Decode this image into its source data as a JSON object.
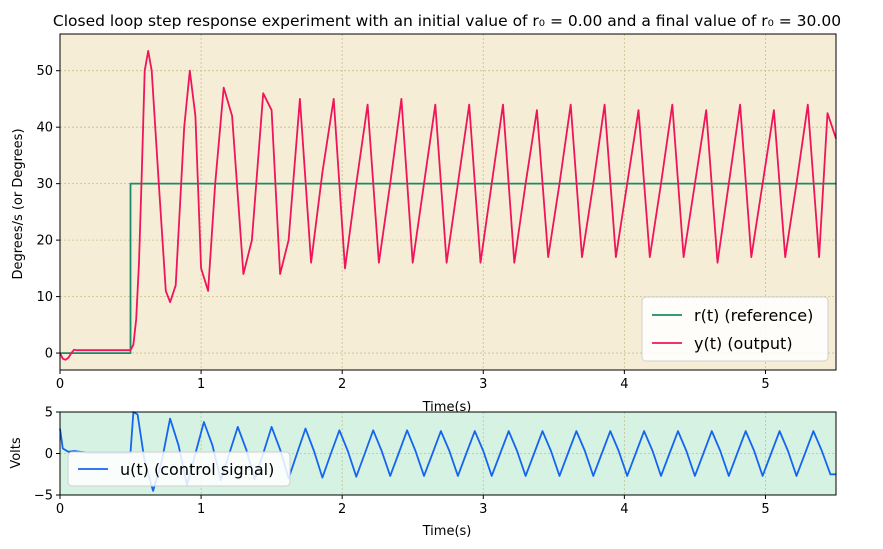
{
  "chart_data": [
    {
      "type": "line",
      "title": "Closed loop step response experiment with an initial value of  r₀ = 0.00 and a  final value of r₀ = 30.00",
      "xlabel": "Time(s)",
      "ylabel": "Degrees/s (or Degrees)",
      "xlim": [
        0,
        5.5
      ],
      "ylim": [
        -3,
        56.5
      ],
      "xticks": [
        0,
        1,
        2,
        3,
        4,
        5
      ],
      "yticks": [
        0,
        10,
        20,
        30,
        40,
        50
      ],
      "grid": true,
      "background": "#f5edd6",
      "legend_position": "lower-right",
      "series": [
        {
          "name": "r(t) (reference)",
          "color": "#1a8a6a",
          "x": [
            0,
            0.5,
            0.5,
            5.5
          ],
          "y": [
            0,
            0,
            30,
            30
          ]
        },
        {
          "name": "y(t) (output)",
          "color": "#f0145a",
          "x": [
            0,
            0.02,
            0.04,
            0.06,
            0.08,
            0.1,
            0.12,
            0.14,
            0.5,
            0.52,
            0.54,
            0.56,
            0.58,
            0.6,
            0.625,
            0.65,
            0.7,
            0.75,
            0.78,
            0.82,
            0.88,
            0.92,
            0.96,
            1.0,
            1.05,
            1.1,
            1.16,
            1.22,
            1.3,
            1.36,
            1.44,
            1.5,
            1.56,
            1.62,
            1.7,
            1.78,
            1.86,
            1.94,
            2.02,
            2.1,
            2.18,
            2.26,
            2.34,
            2.42,
            2.5,
            2.58,
            2.66,
            2.74,
            2.82,
            2.9,
            2.98,
            3.06,
            3.14,
            3.22,
            3.3,
            3.38,
            3.46,
            3.54,
            3.62,
            3.7,
            3.78,
            3.86,
            3.94,
            4.02,
            4.1,
            4.18,
            4.26,
            4.34,
            4.42,
            4.5,
            4.58,
            4.66,
            4.74,
            4.82,
            4.9,
            4.98,
            5.06,
            5.14,
            5.22,
            5.3,
            5.38,
            5.44,
            5.5
          ],
          "y": [
            0,
            -1,
            -1.2,
            -0.8,
            0,
            0.6,
            0.5,
            0.5,
            0.5,
            1.5,
            6,
            16,
            32,
            50,
            53.5,
            50,
            30,
            11,
            9,
            12,
            40,
            50,
            42,
            15,
            11,
            30,
            47,
            42,
            14,
            20,
            46,
            43,
            14,
            20,
            45,
            16,
            32,
            45,
            15,
            30,
            44,
            16,
            30,
            45,
            16,
            30,
            44,
            16,
            30,
            44,
            16,
            30,
            44,
            16,
            30,
            43,
            17,
            30,
            44,
            17,
            30,
            44,
            17,
            30,
            43,
            17,
            30,
            44,
            17,
            30,
            43,
            16,
            30,
            44,
            17,
            30,
            43,
            17,
            30,
            44,
            17,
            42.5,
            38
          ]
        }
      ]
    },
    {
      "type": "line",
      "xlabel": "Time(s)",
      "ylabel": "Volts",
      "xlim": [
        0,
        5.5
      ],
      "ylim": [
        -5,
        5
      ],
      "xticks": [
        0,
        1,
        2,
        3,
        4,
        5
      ],
      "yticks": [
        -5,
        0,
        5
      ],
      "grid": true,
      "background": "#d5f2e3",
      "legend_position": "lower-left",
      "series": [
        {
          "name": "u(t) (control signal)",
          "color": "#1565f0",
          "x": [
            0,
            0.02,
            0.06,
            0.1,
            0.14,
            0.2,
            0.3,
            0.4,
            0.5,
            0.52,
            0.55,
            0.6,
            0.66,
            0.72,
            0.78,
            0.84,
            0.9,
            0.96,
            1.02,
            1.08,
            1.14,
            1.2,
            1.26,
            1.32,
            1.38,
            1.44,
            1.5,
            1.56,
            1.62,
            1.68,
            1.74,
            1.8,
            1.86,
            1.92,
            1.98,
            2.04,
            2.1,
            2.16,
            2.22,
            2.28,
            2.34,
            2.4,
            2.46,
            2.52,
            2.58,
            2.64,
            2.7,
            2.76,
            2.82,
            2.88,
            2.94,
            3.0,
            3.06,
            3.12,
            3.18,
            3.24,
            3.3,
            3.36,
            3.42,
            3.48,
            3.54,
            3.6,
            3.66,
            3.72,
            3.78,
            3.84,
            3.9,
            3.96,
            4.02,
            4.08,
            4.14,
            4.2,
            4.26,
            4.32,
            4.38,
            4.44,
            4.5,
            4.56,
            4.62,
            4.68,
            4.74,
            4.8,
            4.86,
            4.92,
            4.98,
            5.04,
            5.1,
            5.16,
            5.22,
            5.28,
            5.34,
            5.4,
            5.46,
            5.5
          ],
          "y": [
            3,
            0.6,
            0.2,
            0.3,
            0.2,
            0.1,
            0.1,
            0.1,
            0.1,
            5,
            4.7,
            -1,
            -4.5,
            -1,
            4.2,
            1,
            -3.8,
            0,
            3.8,
            1,
            -3.2,
            0,
            3.2,
            0.5,
            -3.1,
            0,
            3.2,
            0.5,
            -3,
            0,
            3,
            0.3,
            -2.9,
            0,
            2.8,
            0.3,
            -2.8,
            0,
            2.8,
            0.3,
            -2.7,
            0,
            2.8,
            0.3,
            -2.7,
            0,
            2.7,
            0.3,
            -2.7,
            0,
            2.7,
            0.3,
            -2.7,
            0,
            2.7,
            0.3,
            -2.7,
            0,
            2.7,
            0.3,
            -2.7,
            0,
            2.7,
            0.3,
            -2.7,
            0,
            2.7,
            0.3,
            -2.7,
            0,
            2.7,
            0.3,
            -2.7,
            0,
            2.7,
            0.3,
            -2.7,
            0,
            2.7,
            0.3,
            -2.7,
            0,
            2.7,
            0.3,
            -2.7,
            0,
            2.7,
            0.3,
            -2.7,
            0,
            2.7,
            0.3,
            -2.5,
            -2.5
          ]
        }
      ]
    }
  ]
}
